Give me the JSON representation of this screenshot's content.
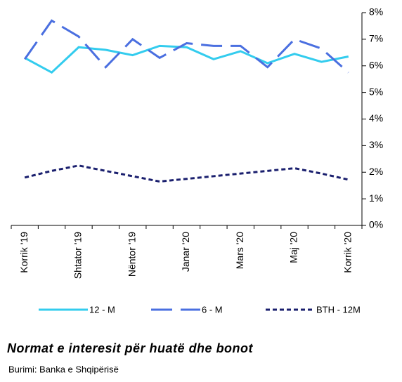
{
  "chart_data": {
    "type": "line",
    "title": "Normat e interesit për huatë dhe bonot",
    "subtitle": "Burimi: Banka e Shqipërisë",
    "categories": [
      "Korrik '19",
      null,
      "Shtator '19",
      null,
      "Nëntor '19",
      null,
      "Janar '20",
      null,
      "Mars '20",
      null,
      "Maj '20",
      null,
      "Korrik '20"
    ],
    "series": [
      {
        "name": "12 - M",
        "color": "#33ccee",
        "values": [
          6.3,
          5.75,
          6.7,
          6.6,
          6.4,
          6.75,
          6.7,
          6.25,
          6.55,
          6.1,
          6.45,
          6.15,
          6.35
        ]
      },
      {
        "name": "6 - M",
        "color": "#4a6fe0",
        "values": [
          6.25,
          7.7,
          7.1,
          5.95,
          7.0,
          6.3,
          6.85,
          6.75,
          6.75,
          5.95,
          7.0,
          6.65,
          5.75
        ]
      },
      {
        "name": "BTH - 12M",
        "color": "#1a1f6e",
        "values": [
          1.8,
          2.05,
          2.25,
          2.05,
          1.85,
          1.65,
          1.75,
          1.85,
          1.95,
          2.05,
          2.15,
          1.95,
          1.72
        ]
      }
    ],
    "ylim": [
      0,
      8
    ],
    "yticks": [
      {
        "value": 0,
        "label": "0%"
      },
      {
        "value": 1,
        "label": "1%"
      },
      {
        "value": 2,
        "label": "2%"
      },
      {
        "value": 3,
        "label": "3%"
      },
      {
        "value": 4,
        "label": "4%"
      },
      {
        "value": 5,
        "label": "5%"
      },
      {
        "value": 6,
        "label": "6%"
      },
      {
        "value": 7,
        "label": "7%"
      },
      {
        "value": 8,
        "label": "8%"
      }
    ],
    "y_axis_side": "right",
    "grid": false
  }
}
